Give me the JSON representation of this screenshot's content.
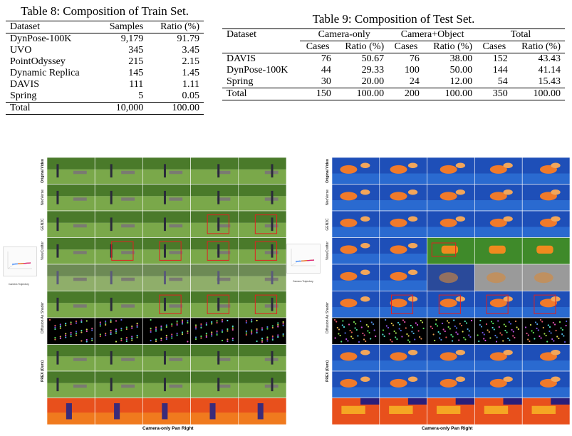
{
  "table8": {
    "caption": "Table 8: Composition of Train Set.",
    "headers": [
      "Dataset",
      "Samples",
      "Ratio (%)"
    ],
    "rows": [
      [
        "DynPose-100K",
        "9,179",
        "91.79"
      ],
      [
        "UVO",
        "345",
        "3.45"
      ],
      [
        "PointOdyssey",
        "215",
        "2.15"
      ],
      [
        "Dynamic Replica",
        "145",
        "1.45"
      ],
      [
        "DAVIS",
        "111",
        "1.11"
      ],
      [
        "Spring",
        "5",
        "0.05"
      ]
    ],
    "total": [
      "Total",
      "10,000",
      "100.00"
    ]
  },
  "table9": {
    "caption": "Table 9: Composition of Test Set.",
    "dataset_header": "Dataset",
    "group_headers": [
      "Camera-only",
      "Camera+Object",
      "Total"
    ],
    "sub_headers": [
      "Cases",
      "Ratio (%)",
      "Cases",
      "Ratio (%)",
      "Cases",
      "Ratio (%)"
    ],
    "rows": [
      [
        "DAVIS",
        "76",
        "50.67",
        "76",
        "38.00",
        "152",
        "43.43"
      ],
      [
        "DynPose-100K",
        "44",
        "29.33",
        "100",
        "50.00",
        "144",
        "41.14"
      ],
      [
        "Spring",
        "30",
        "20.00",
        "24",
        "12.00",
        "54",
        "15.43"
      ]
    ],
    "total": [
      "Total",
      "150",
      "100.00",
      "200",
      "100.00",
      "350",
      "100.00"
    ]
  },
  "figure_left": {
    "caption": "Camera-only Pan Right",
    "trajectory_label": "Camera Trajectory",
    "row_labels": [
      "Original Video",
      "NeoVerse",
      "GEN3C",
      "ViewCrafter",
      "",
      "Diffusion As Shader",
      "",
      "PREX (Ours)",
      "",
      ""
    ]
  },
  "figure_right": {
    "caption": "Camera-only Pan Right",
    "trajectory_label": "Camera Trajectory",
    "row_labels": [
      "Original Video",
      "NeoVerse",
      "GEN3C",
      "ViewCrafter",
      "",
      "Diffusion As Shader",
      "",
      "PREX (Ours)",
      "",
      ""
    ]
  },
  "colors": {
    "grass": "#4f7a2e",
    "fish_water": "#1e4fb8",
    "highlight_box": "#e02020",
    "depth_warm": "#e8501c"
  }
}
